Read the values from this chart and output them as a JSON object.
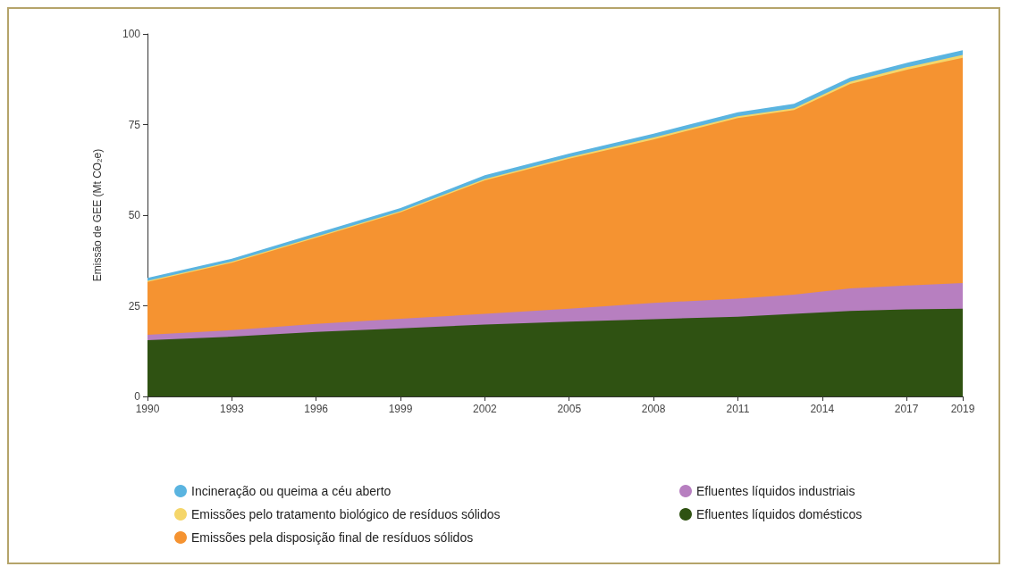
{
  "chart_data": {
    "type": "area",
    "stacked": true,
    "ylabel": "Emissão de GEE (Mt CO$_{2}$e)",
    "x": [
      1990,
      1993,
      1996,
      1999,
      2002,
      2005,
      2008,
      2011,
      2013,
      2015,
      2017,
      2019
    ],
    "xlim": [
      1990,
      2019
    ],
    "xticks": [
      1990,
      1993,
      1996,
      1999,
      2002,
      2005,
      2008,
      2011,
      2014,
      2017,
      2019
    ],
    "ylim": [
      0,
      100
    ],
    "yticks": [
      0,
      25,
      50,
      75,
      100
    ],
    "grid": false,
    "legend": "bottom",
    "series": [
      {
        "name": "Efluentes líquidos domésticos",
        "color": "#2f5212",
        "values": [
          15.5,
          16.5,
          17.8,
          18.8,
          19.8,
          20.6,
          21.3,
          22.0,
          22.8,
          23.6,
          24.0,
          24.2
        ]
      },
      {
        "name": "Efluentes líquidos industriais",
        "color": "#b77fc0",
        "values": [
          1.5,
          1.8,
          2.2,
          2.6,
          3.0,
          3.6,
          4.5,
          5.0,
          5.3,
          6.2,
          6.6,
          7.1
        ]
      },
      {
        "name": "Emissões pela disposição final de resíduos sólidos",
        "color": "#f59331",
        "values": [
          14.6,
          18.6,
          23.8,
          29.4,
          36.8,
          41.4,
          45.1,
          49.8,
          50.9,
          56.4,
          59.5,
          62.1
        ]
      },
      {
        "name": "Emissões pelo tratamento biológico de resíduos sólidos",
        "color": "#f5d66a",
        "values": [
          0.3,
          0.3,
          0.3,
          0.3,
          0.4,
          0.4,
          0.5,
          0.5,
          0.5,
          0.6,
          0.7,
          0.8
        ]
      },
      {
        "name": "Incineração ou queima a céu aberto",
        "color": "#5ab4e0",
        "values": [
          0.8,
          0.8,
          0.9,
          0.9,
          1.0,
          1.0,
          1.1,
          1.1,
          1.2,
          1.2,
          1.2,
          1.3
        ]
      }
    ]
  }
}
